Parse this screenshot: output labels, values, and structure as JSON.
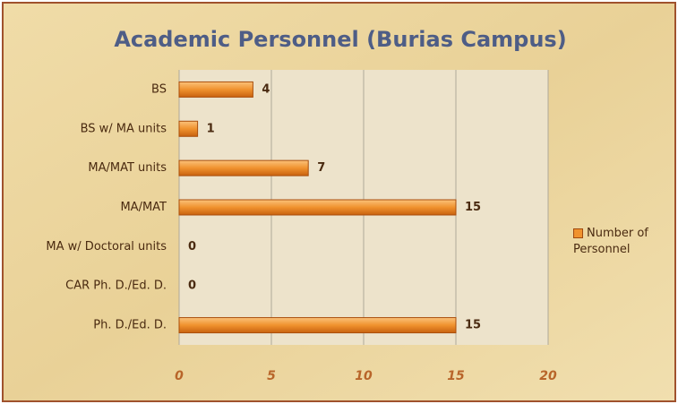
{
  "chart_data": {
    "type": "bar",
    "orientation": "horizontal",
    "title": "Academic Personnel (Burias Campus)",
    "categories": [
      "BS",
      "BS w/ MA units",
      "MA/MAT units",
      "MA/MAT",
      "MA w/ Doctoral units",
      "CAR Ph. D./Ed. D.",
      "Ph. D./Ed. D."
    ],
    "series": [
      {
        "name": "Number of Personnel",
        "color": "#f0922e",
        "values": [
          4,
          1,
          7,
          15,
          0,
          0,
          15
        ]
      }
    ],
    "xlim": [
      0,
      20
    ],
    "xticks": [
      0,
      5,
      10,
      15,
      20
    ],
    "grid": true,
    "legend": "right"
  }
}
